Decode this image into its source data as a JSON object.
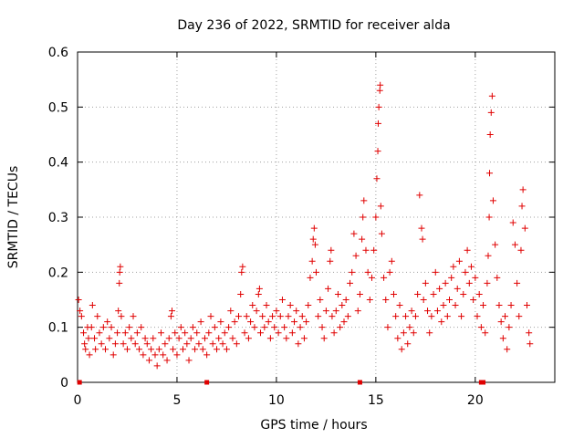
{
  "chart_data": {
    "type": "scatter",
    "title": "Day 236 of 2022, SRMTID for receiver alda",
    "xlabel": "GPS time / hours",
    "ylabel": "SRMTID / TECUs",
    "xlim": [
      0,
      24
    ],
    "ylim": [
      0,
      0.6
    ],
    "grid": true,
    "marker": "+",
    "colors": {
      "series": "#e00000",
      "grid": "#a0a0a0",
      "axis": "#000000"
    },
    "x_ticks": [
      {
        "value": 0,
        "label": "0"
      },
      {
        "value": 5,
        "label": "5"
      },
      {
        "value": 10,
        "label": "10"
      },
      {
        "value": 15,
        "label": "15"
      },
      {
        "value": 20,
        "label": "20"
      }
    ],
    "y_ticks": [
      {
        "value": 0,
        "label": "0"
      },
      {
        "value": 0.1,
        "label": "0.1"
      },
      {
        "value": 0.2,
        "label": "0.2"
      },
      {
        "value": 0.3,
        "label": "0.3"
      },
      {
        "value": 0.4,
        "label": "0.4"
      },
      {
        "value": 0.5,
        "label": "0.5"
      },
      {
        "value": 0.6,
        "label": "0.6"
      }
    ],
    "series": [
      {
        "name": "SRMTID",
        "points": [
          [
            0.05,
            0.15
          ],
          [
            0.12,
            0.13
          ],
          [
            0.2,
            0.12
          ],
          [
            0.3,
            0.09
          ],
          [
            0.35,
            0.07
          ],
          [
            0.4,
            0.06
          ],
          [
            0.5,
            0.1
          ],
          [
            0.55,
            0.08
          ],
          [
            0.6,
            0.05
          ],
          [
            0.7,
            0.1
          ],
          [
            0.75,
            0.14
          ],
          [
            0.85,
            0.08
          ],
          [
            0.9,
            0.06
          ],
          [
            1.0,
            0.12
          ],
          [
            1.1,
            0.09
          ],
          [
            1.2,
            0.07
          ],
          [
            1.3,
            0.1
          ],
          [
            1.4,
            0.06
          ],
          [
            1.5,
            0.11
          ],
          [
            1.6,
            0.08
          ],
          [
            1.7,
            0.1
          ],
          [
            1.8,
            0.05
          ],
          [
            1.9,
            0.07
          ],
          [
            2.0,
            0.09
          ],
          [
            2.05,
            0.13
          ],
          [
            2.1,
            0.18
          ],
          [
            2.12,
            0.2
          ],
          [
            2.15,
            0.21
          ],
          [
            2.2,
            0.12
          ],
          [
            2.3,
            0.07
          ],
          [
            2.4,
            0.09
          ],
          [
            2.5,
            0.06
          ],
          [
            2.6,
            0.1
          ],
          [
            2.7,
            0.08
          ],
          [
            2.8,
            0.12
          ],
          [
            2.9,
            0.07
          ],
          [
            3.0,
            0.09
          ],
          [
            3.1,
            0.06
          ],
          [
            3.2,
            0.1
          ],
          [
            3.3,
            0.05
          ],
          [
            3.4,
            0.08
          ],
          [
            3.5,
            0.07
          ],
          [
            3.6,
            0.04
          ],
          [
            3.7,
            0.06
          ],
          [
            3.8,
            0.08
          ],
          [
            3.9,
            0.05
          ],
          [
            4.0,
            0.03
          ],
          [
            4.1,
            0.06
          ],
          [
            4.2,
            0.09
          ],
          [
            4.3,
            0.05
          ],
          [
            4.4,
            0.07
          ],
          [
            4.5,
            0.04
          ],
          [
            4.6,
            0.08
          ],
          [
            4.7,
            0.12
          ],
          [
            4.75,
            0.13
          ],
          [
            4.8,
            0.06
          ],
          [
            4.9,
            0.09
          ],
          [
            5.0,
            0.05
          ],
          [
            5.1,
            0.08
          ],
          [
            5.2,
            0.1
          ],
          [
            5.3,
            0.06
          ],
          [
            5.4,
            0.09
          ],
          [
            5.5,
            0.07
          ],
          [
            5.6,
            0.04
          ],
          [
            5.7,
            0.08
          ],
          [
            5.8,
            0.1
          ],
          [
            5.9,
            0.06
          ],
          [
            6.0,
            0.09
          ],
          [
            6.1,
            0.07
          ],
          [
            6.2,
            0.11
          ],
          [
            6.3,
            0.06
          ],
          [
            6.4,
            0.08
          ],
          [
            6.5,
            0.05
          ],
          [
            6.6,
            0.09
          ],
          [
            6.7,
            0.12
          ],
          [
            6.8,
            0.07
          ],
          [
            6.9,
            0.1
          ],
          [
            7.0,
            0.06
          ],
          [
            7.1,
            0.08
          ],
          [
            7.2,
            0.11
          ],
          [
            7.3,
            0.07
          ],
          [
            7.4,
            0.09
          ],
          [
            7.5,
            0.06
          ],
          [
            7.6,
            0.1
          ],
          [
            7.7,
            0.13
          ],
          [
            7.8,
            0.08
          ],
          [
            7.9,
            0.11
          ],
          [
            8.0,
            0.07
          ],
          [
            8.1,
            0.12
          ],
          [
            8.2,
            0.16
          ],
          [
            8.25,
            0.2
          ],
          [
            8.3,
            0.21
          ],
          [
            8.4,
            0.09
          ],
          [
            8.5,
            0.12
          ],
          [
            8.6,
            0.08
          ],
          [
            8.7,
            0.11
          ],
          [
            8.8,
            0.14
          ],
          [
            8.9,
            0.1
          ],
          [
            9.0,
            0.13
          ],
          [
            9.1,
            0.16
          ],
          [
            9.15,
            0.17
          ],
          [
            9.2,
            0.09
          ],
          [
            9.3,
            0.12
          ],
          [
            9.4,
            0.1
          ],
          [
            9.5,
            0.14
          ],
          [
            9.6,
            0.11
          ],
          [
            9.7,
            0.08
          ],
          [
            9.8,
            0.12
          ],
          [
            9.9,
            0.1
          ],
          [
            10.0,
            0.13
          ],
          [
            10.1,
            0.09
          ],
          [
            10.2,
            0.12
          ],
          [
            10.3,
            0.15
          ],
          [
            10.4,
            0.1
          ],
          [
            10.5,
            0.08
          ],
          [
            10.6,
            0.12
          ],
          [
            10.7,
            0.14
          ],
          [
            10.8,
            0.09
          ],
          [
            10.9,
            0.11
          ],
          [
            11.0,
            0.13
          ],
          [
            11.1,
            0.07
          ],
          [
            11.2,
            0.1
          ],
          [
            11.3,
            0.12
          ],
          [
            11.4,
            0.08
          ],
          [
            11.5,
            0.11
          ],
          [
            11.6,
            0.14
          ],
          [
            11.7,
            0.19
          ],
          [
            11.8,
            0.22
          ],
          [
            11.85,
            0.26
          ],
          [
            11.9,
            0.28
          ],
          [
            11.95,
            0.25
          ],
          [
            12.0,
            0.2
          ],
          [
            12.1,
            0.12
          ],
          [
            12.2,
            0.15
          ],
          [
            12.3,
            0.1
          ],
          [
            12.4,
            0.08
          ],
          [
            12.5,
            0.13
          ],
          [
            12.6,
            0.17
          ],
          [
            12.7,
            0.22
          ],
          [
            12.75,
            0.24
          ],
          [
            12.8,
            0.12
          ],
          [
            12.9,
            0.09
          ],
          [
            13.0,
            0.13
          ],
          [
            13.1,
            0.16
          ],
          [
            13.2,
            0.1
          ],
          [
            13.3,
            0.14
          ],
          [
            13.4,
            0.11
          ],
          [
            13.5,
            0.15
          ],
          [
            13.6,
            0.12
          ],
          [
            13.7,
            0.18
          ],
          [
            13.8,
            0.2
          ],
          [
            13.9,
            0.27
          ],
          [
            14.0,
            0.23
          ],
          [
            14.1,
            0.13
          ],
          [
            14.2,
            0.16
          ],
          [
            14.3,
            0.26
          ],
          [
            14.35,
            0.3
          ],
          [
            14.4,
            0.33
          ],
          [
            14.5,
            0.24
          ],
          [
            14.6,
            0.2
          ],
          [
            14.7,
            0.15
          ],
          [
            14.8,
            0.19
          ],
          [
            14.9,
            0.24
          ],
          [
            15.0,
            0.3
          ],
          [
            15.05,
            0.37
          ],
          [
            15.1,
            0.42
          ],
          [
            15.12,
            0.47
          ],
          [
            15.15,
            0.5
          ],
          [
            15.2,
            0.53
          ],
          [
            15.22,
            0.54
          ],
          [
            15.25,
            0.32
          ],
          [
            15.3,
            0.27
          ],
          [
            15.4,
            0.19
          ],
          [
            15.5,
            0.15
          ],
          [
            15.6,
            0.1
          ],
          [
            15.7,
            0.2
          ],
          [
            15.8,
            0.22
          ],
          [
            15.9,
            0.16
          ],
          [
            16.0,
            0.12
          ],
          [
            16.1,
            0.08
          ],
          [
            16.2,
            0.14
          ],
          [
            16.3,
            0.06
          ],
          [
            16.4,
            0.09
          ],
          [
            16.5,
            0.12
          ],
          [
            16.6,
            0.07
          ],
          [
            16.7,
            0.1
          ],
          [
            16.8,
            0.13
          ],
          [
            16.9,
            0.09
          ],
          [
            17.0,
            0.12
          ],
          [
            17.1,
            0.16
          ],
          [
            17.2,
            0.34
          ],
          [
            17.3,
            0.28
          ],
          [
            17.35,
            0.26
          ],
          [
            17.4,
            0.15
          ],
          [
            17.5,
            0.18
          ],
          [
            17.6,
            0.13
          ],
          [
            17.7,
            0.09
          ],
          [
            17.8,
            0.12
          ],
          [
            17.9,
            0.16
          ],
          [
            18.0,
            0.2
          ],
          [
            18.1,
            0.13
          ],
          [
            18.2,
            0.17
          ],
          [
            18.3,
            0.11
          ],
          [
            18.4,
            0.14
          ],
          [
            18.5,
            0.18
          ],
          [
            18.6,
            0.12
          ],
          [
            18.7,
            0.15
          ],
          [
            18.8,
            0.19
          ],
          [
            18.9,
            0.21
          ],
          [
            19.0,
            0.14
          ],
          [
            19.1,
            0.17
          ],
          [
            19.2,
            0.22
          ],
          [
            19.3,
            0.12
          ],
          [
            19.4,
            0.16
          ],
          [
            19.5,
            0.2
          ],
          [
            19.6,
            0.24
          ],
          [
            19.7,
            0.18
          ],
          [
            19.8,
            0.21
          ],
          [
            19.9,
            0.15
          ],
          [
            20.0,
            0.19
          ],
          [
            20.1,
            0.12
          ],
          [
            20.2,
            0.16
          ],
          [
            20.3,
            0.1
          ],
          [
            20.4,
            0.14
          ],
          [
            20.5,
            0.09
          ],
          [
            20.6,
            0.18
          ],
          [
            20.65,
            0.23
          ],
          [
            20.7,
            0.3
          ],
          [
            20.72,
            0.38
          ],
          [
            20.75,
            0.45
          ],
          [
            20.8,
            0.49
          ],
          [
            20.85,
            0.52
          ],
          [
            20.9,
            0.33
          ],
          [
            21.0,
            0.25
          ],
          [
            21.1,
            0.19
          ],
          [
            21.2,
            0.14
          ],
          [
            21.3,
            0.11
          ],
          [
            21.4,
            0.08
          ],
          [
            21.5,
            0.12
          ],
          [
            21.6,
            0.06
          ],
          [
            21.7,
            0.1
          ],
          [
            21.8,
            0.14
          ],
          [
            21.9,
            0.29
          ],
          [
            22.0,
            0.25
          ],
          [
            22.1,
            0.18
          ],
          [
            22.2,
            0.12
          ],
          [
            22.3,
            0.24
          ],
          [
            22.35,
            0.32
          ],
          [
            22.4,
            0.35
          ],
          [
            22.5,
            0.28
          ],
          [
            22.6,
            0.14
          ],
          [
            22.7,
            0.09
          ],
          [
            22.75,
            0.07
          ]
        ],
        "zero_markers": [
          0.1,
          6.5,
          14.2,
          20.3,
          20.4
        ]
      }
    ]
  }
}
